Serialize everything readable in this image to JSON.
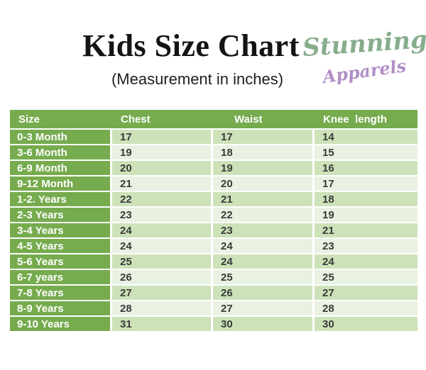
{
  "header": {
    "title": "Kids Size Chart",
    "subtitle": "(Measurement in inches)",
    "logo": {
      "line1": "Stunning",
      "line2": "Apparels"
    }
  },
  "colors": {
    "header_green": "#76ab4e",
    "row_dark": "#cde2b9",
    "row_light": "#e9f2e2",
    "cell_text": "#3a3a3a",
    "logo_green": "#87ad8c",
    "logo_purple": "#b18fc6",
    "title_color": "#141414"
  },
  "chart_data": {
    "type": "table",
    "title": "Kids Size Chart",
    "subtitle": "(Measurement in inches)",
    "columns": [
      "Size",
      "Chest",
      "Waist",
      "Knee  length"
    ],
    "rows": [
      [
        "0-3 Month",
        17,
        17,
        14
      ],
      [
        "3-6 Month",
        19,
        18,
        15
      ],
      [
        "6-9 Month",
        20,
        19,
        16
      ],
      [
        "9-12 Month",
        21,
        20,
        17
      ],
      [
        "1-2. Years",
        22,
        21,
        18
      ],
      [
        "2-3 Years",
        23,
        22,
        19
      ],
      [
        "3-4 Years",
        24,
        23,
        21
      ],
      [
        "4-5 Years",
        24,
        24,
        23
      ],
      [
        "5-6 Years",
        25,
        24,
        24
      ],
      [
        "6-7 years",
        26,
        25,
        25
      ],
      [
        "7-8 Years",
        27,
        26,
        27
      ],
      [
        "8-9 Years",
        28,
        27,
        28
      ],
      [
        "9-10 Years",
        31,
        30,
        30
      ]
    ],
    "layout": {
      "zebra_striping": "odd rows dark green, even rows light green",
      "first_column_style": "solid green with white bold text",
      "header_style": "solid green bar with white bold text"
    }
  }
}
